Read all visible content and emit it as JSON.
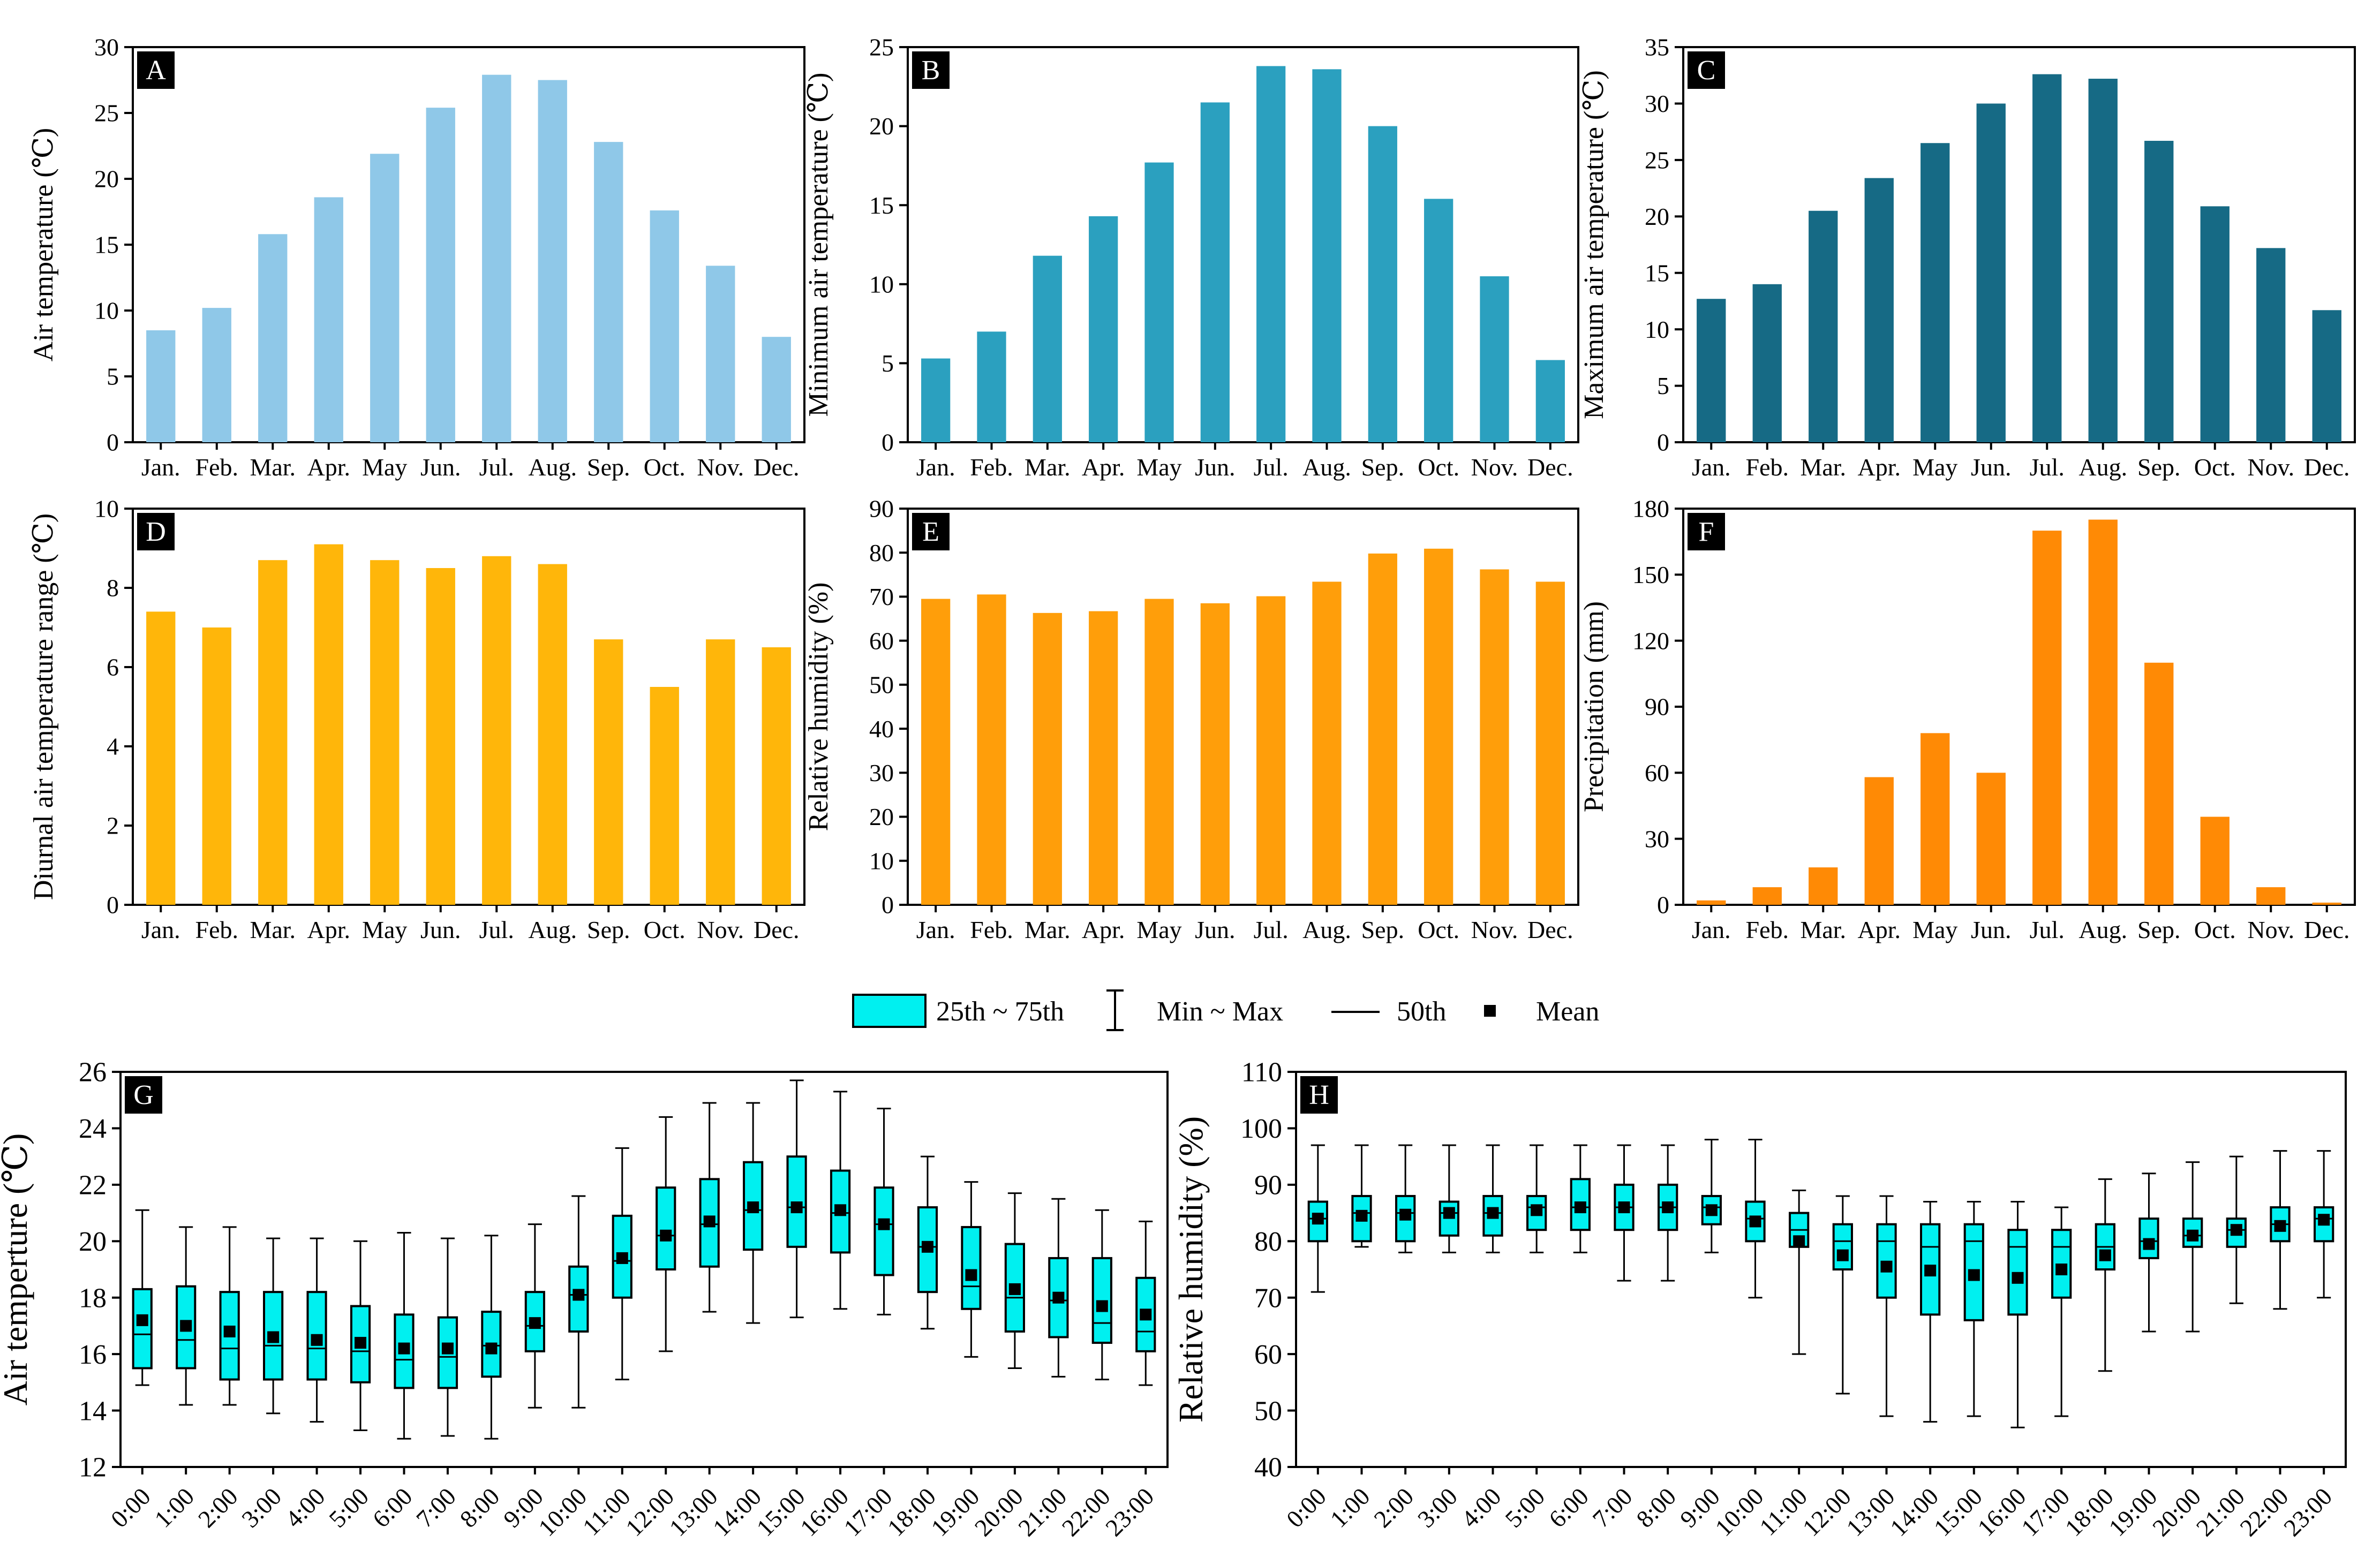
{
  "months": [
    "Jan.",
    "Feb.",
    "Mar.",
    "Apr.",
    "May",
    "Jun.",
    "Jul.",
    "Aug.",
    "Sep.",
    "Oct.",
    "Nov.",
    "Dec."
  ],
  "hours": [
    "0:00",
    "1:00",
    "2:00",
    "3:00",
    "4:00",
    "5:00",
    "6:00",
    "7:00",
    "8:00",
    "9:00",
    "10:00",
    "11:00",
    "12:00",
    "13:00",
    "14:00",
    "15:00",
    "16:00",
    "17:00",
    "18:00",
    "19:00",
    "20:00",
    "21:00",
    "22:00",
    "23:00"
  ],
  "legend": {
    "iqr_label": "25th ~ 75th",
    "range_label": "Min ~ Max",
    "median_label": "50th",
    "mean_label": "Mean"
  },
  "colors": {
    "A": "#8FC8E8",
    "B": "#2BA0BF",
    "C": "#166A85",
    "D": "#FFB60A",
    "E": "#FF9E0A",
    "F": "#FF8A05",
    "box": "#00F0F0"
  },
  "chart_data": [
    {
      "type": "bar",
      "panel": "A",
      "ylabel": "Air temperature (℃)",
      "ylim": [
        0,
        30
      ],
      "yticks": [
        0,
        5,
        10,
        15,
        20,
        25,
        30
      ],
      "values": [
        8.5,
        10.2,
        15.8,
        18.6,
        21.9,
        25.4,
        27.9,
        27.5,
        22.8,
        17.6,
        13.4,
        8.0
      ]
    },
    {
      "type": "bar",
      "panel": "B",
      "ylabel": "Minimum air temperature (℃)",
      "ylim": [
        0,
        25
      ],
      "yticks": [
        0,
        5,
        10,
        15,
        20,
        25
      ],
      "values": [
        5.3,
        7.0,
        11.8,
        14.3,
        17.7,
        21.5,
        23.8,
        23.6,
        20.0,
        15.4,
        10.5,
        5.2
      ]
    },
    {
      "type": "bar",
      "panel": "C",
      "ylabel": "Maximum air temperature (℃)",
      "ylim": [
        0,
        35
      ],
      "yticks": [
        0,
        5,
        10,
        15,
        20,
        25,
        30,
        35
      ],
      "values": [
        12.7,
        14.0,
        20.5,
        23.4,
        26.5,
        30.0,
        32.6,
        32.2,
        26.7,
        20.9,
        17.2,
        11.7
      ]
    },
    {
      "type": "bar",
      "panel": "D",
      "ylabel": "Diurnal air temperature range (℃)",
      "ylim": [
        0,
        10
      ],
      "yticks": [
        0,
        2,
        4,
        6,
        8,
        10
      ],
      "values": [
        7.4,
        7.0,
        8.7,
        9.1,
        8.7,
        8.5,
        8.8,
        8.6,
        6.7,
        5.5,
        6.7,
        6.5
      ]
    },
    {
      "type": "bar",
      "panel": "E",
      "ylabel": "Relative humidity (%)",
      "ylim": [
        0,
        90
      ],
      "yticks": [
        0,
        10,
        20,
        30,
        40,
        50,
        60,
        70,
        80,
        90
      ],
      "values": [
        69.5,
        70.5,
        66.3,
        66.7,
        69.5,
        68.5,
        70.1,
        73.4,
        79.8,
        80.9,
        76.2,
        73.4
      ]
    },
    {
      "type": "bar",
      "panel": "F",
      "ylabel": "Precipitation (mm)",
      "ylim": [
        0,
        180
      ],
      "yticks": [
        0,
        30,
        60,
        90,
        120,
        150,
        180
      ],
      "values": [
        2,
        8,
        17,
        58,
        78,
        60,
        170,
        175,
        110,
        40,
        8,
        1
      ]
    },
    {
      "type": "box",
      "panel": "G",
      "ylabel": "Air temperture (℃)",
      "ylim": [
        12,
        26
      ],
      "yticks": [
        12,
        14,
        16,
        18,
        20,
        22,
        24,
        26
      ],
      "stats": [
        {
          "min": 14.9,
          "q1": 15.5,
          "med": 16.7,
          "q3": 18.3,
          "max": 21.1,
          "mean": 17.2
        },
        {
          "min": 14.2,
          "q1": 15.5,
          "med": 16.5,
          "q3": 18.4,
          "max": 20.5,
          "mean": 17.0
        },
        {
          "min": 14.2,
          "q1": 15.1,
          "med": 16.2,
          "q3": 18.2,
          "max": 20.5,
          "mean": 16.8
        },
        {
          "min": 13.9,
          "q1": 15.1,
          "med": 16.3,
          "q3": 18.2,
          "max": 20.1,
          "mean": 16.6
        },
        {
          "min": 13.6,
          "q1": 15.1,
          "med": 16.2,
          "q3": 18.2,
          "max": 20.1,
          "mean": 16.5
        },
        {
          "min": 13.3,
          "q1": 15.0,
          "med": 16.1,
          "q3": 17.7,
          "max": 20.0,
          "mean": 16.4
        },
        {
          "min": 13.0,
          "q1": 14.8,
          "med": 15.8,
          "q3": 17.4,
          "max": 20.3,
          "mean": 16.2
        },
        {
          "min": 13.1,
          "q1": 14.8,
          "med": 15.9,
          "q3": 17.3,
          "max": 20.1,
          "mean": 16.2
        },
        {
          "min": 13.0,
          "q1": 15.2,
          "med": 16.3,
          "q3": 17.5,
          "max": 20.2,
          "mean": 16.2
        },
        {
          "min": 14.1,
          "q1": 16.1,
          "med": 17.0,
          "q3": 18.2,
          "max": 20.6,
          "mean": 17.1
        },
        {
          "min": 14.1,
          "q1": 16.8,
          "med": 18.1,
          "q3": 19.1,
          "max": 21.6,
          "mean": 18.1
        },
        {
          "min": 15.1,
          "q1": 18.0,
          "med": 19.3,
          "q3": 20.9,
          "max": 23.3,
          "mean": 19.4
        },
        {
          "min": 16.1,
          "q1": 19.0,
          "med": 20.2,
          "q3": 21.9,
          "max": 24.4,
          "mean": 20.2
        },
        {
          "min": 17.5,
          "q1": 19.1,
          "med": 20.6,
          "q3": 22.2,
          "max": 24.9,
          "mean": 20.7
        },
        {
          "min": 17.1,
          "q1": 19.7,
          "med": 21.1,
          "q3": 22.8,
          "max": 24.9,
          "mean": 21.2
        },
        {
          "min": 17.3,
          "q1": 19.8,
          "med": 21.2,
          "q3": 23.0,
          "max": 25.7,
          "mean": 21.2
        },
        {
          "min": 17.6,
          "q1": 19.6,
          "med": 21.0,
          "q3": 22.5,
          "max": 25.3,
          "mean": 21.1
        },
        {
          "min": 17.4,
          "q1": 18.8,
          "med": 20.6,
          "q3": 21.9,
          "max": 24.7,
          "mean": 20.6
        },
        {
          "min": 16.9,
          "q1": 18.2,
          "med": 19.8,
          "q3": 21.2,
          "max": 23.0,
          "mean": 19.8
        },
        {
          "min": 15.9,
          "q1": 17.6,
          "med": 18.4,
          "q3": 20.5,
          "max": 22.1,
          "mean": 18.8
        },
        {
          "min": 15.5,
          "q1": 16.8,
          "med": 18.0,
          "q3": 19.9,
          "max": 21.7,
          "mean": 18.3
        },
        {
          "min": 15.2,
          "q1": 16.6,
          "med": 17.9,
          "q3": 19.4,
          "max": 21.5,
          "mean": 18.0
        },
        {
          "min": 15.1,
          "q1": 16.4,
          "med": 17.1,
          "q3": 19.4,
          "max": 21.1,
          "mean": 17.7
        },
        {
          "min": 14.9,
          "q1": 16.1,
          "med": 16.8,
          "q3": 18.7,
          "max": 20.7,
          "mean": 17.4
        }
      ]
    },
    {
      "type": "box",
      "panel": "H",
      "ylabel": "Relative humidity (%)",
      "ylim": [
        40,
        110
      ],
      "yticks": [
        40,
        50,
        60,
        70,
        80,
        90,
        100,
        110
      ],
      "stats": [
        {
          "min": 71,
          "q1": 80,
          "med": 84,
          "q3": 87,
          "max": 97,
          "mean": 84
        },
        {
          "min": 79,
          "q1": 80,
          "med": 85,
          "q3": 88,
          "max": 97,
          "mean": 84.5
        },
        {
          "min": 78,
          "q1": 80,
          "med": 85,
          "q3": 88,
          "max": 97,
          "mean": 84.7
        },
        {
          "min": 78,
          "q1": 81,
          "med": 85,
          "q3": 87,
          "max": 97,
          "mean": 85
        },
        {
          "min": 78,
          "q1": 81,
          "med": 85,
          "q3": 88,
          "max": 97,
          "mean": 85
        },
        {
          "min": 78,
          "q1": 82,
          "med": 86,
          "q3": 88,
          "max": 97,
          "mean": 85.5
        },
        {
          "min": 78,
          "q1": 82,
          "med": 86,
          "q3": 91,
          "max": 97,
          "mean": 86
        },
        {
          "min": 73,
          "q1": 82,
          "med": 86,
          "q3": 90,
          "max": 97,
          "mean": 86
        },
        {
          "min": 73,
          "q1": 82,
          "med": 86,
          "q3": 90,
          "max": 97,
          "mean": 86
        },
        {
          "min": 78,
          "q1": 83,
          "med": 86,
          "q3": 88,
          "max": 98,
          "mean": 85.5
        },
        {
          "min": 70,
          "q1": 80,
          "med": 84,
          "q3": 87,
          "max": 98,
          "mean": 83.5
        },
        {
          "min": 60,
          "q1": 79,
          "med": 82,
          "q3": 85,
          "max": 89,
          "mean": 80
        },
        {
          "min": 53,
          "q1": 75,
          "med": 80,
          "q3": 83,
          "max": 88,
          "mean": 77.5
        },
        {
          "min": 49,
          "q1": 70,
          "med": 80,
          "q3": 83,
          "max": 88,
          "mean": 75.5
        },
        {
          "min": 48,
          "q1": 67,
          "med": 79,
          "q3": 83,
          "max": 87,
          "mean": 74.8
        },
        {
          "min": 49,
          "q1": 66,
          "med": 80,
          "q3": 83,
          "max": 87,
          "mean": 74
        },
        {
          "min": 47,
          "q1": 67,
          "med": 79,
          "q3": 82,
          "max": 87,
          "mean": 73.5
        },
        {
          "min": 49,
          "q1": 70,
          "med": 79,
          "q3": 82,
          "max": 86,
          "mean": 75
        },
        {
          "min": 57,
          "q1": 75,
          "med": 79,
          "q3": 83,
          "max": 91,
          "mean": 77.5
        },
        {
          "min": 64,
          "q1": 77,
          "med": 80,
          "q3": 84,
          "max": 92,
          "mean": 79.5
        },
        {
          "min": 64,
          "q1": 79,
          "med": 81,
          "q3": 84,
          "max": 94,
          "mean": 81
        },
        {
          "min": 69,
          "q1": 79,
          "med": 82,
          "q3": 84,
          "max": 95,
          "mean": 82
        },
        {
          "min": 68,
          "q1": 80,
          "med": 83,
          "q3": 86,
          "max": 96,
          "mean": 82.7
        },
        {
          "min": 70,
          "q1": 80,
          "med": 84,
          "q3": 86,
          "max": 96,
          "mean": 83.8
        }
      ]
    }
  ]
}
